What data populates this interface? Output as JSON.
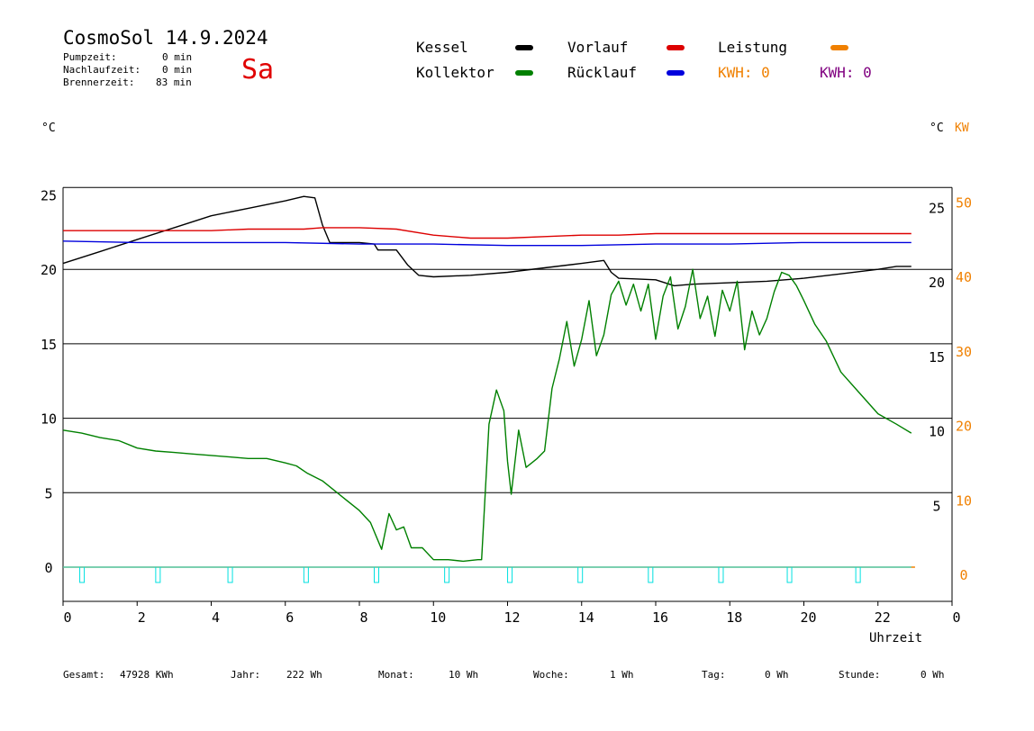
{
  "header": {
    "title": "CosmoSol 14.9.2024",
    "day": "Sa",
    "stats": [
      {
        "label": "Pumpzeit:",
        "value": "0 min"
      },
      {
        "label": "Nachlaufzeit:",
        "value": "0 min"
      },
      {
        "label": "Brennerzeit:",
        "value": "83 min"
      }
    ]
  },
  "legend": {
    "kessel": {
      "label": "Kessel",
      "color": "#000000"
    },
    "vorlauf": {
      "label": "Vorlauf",
      "color": "#dd0000"
    },
    "leistung": {
      "label": "Leistung",
      "color": "#f08000"
    },
    "kollektor": {
      "label": "Kollektor",
      "color": "#008000"
    },
    "ruecklauf": {
      "label": "Rücklauf",
      "color": "#0000dd"
    },
    "kwh1": {
      "text": "KWH: 0",
      "color": "#f08000"
    },
    "kwh2": {
      "text": "KWH: 0",
      "color": "#800080"
    }
  },
  "axes": {
    "left_unit": "°C",
    "right_unit_c": "°C",
    "right_unit_kw": "KW",
    "x_label": "Uhrzeit"
  },
  "footer": [
    {
      "label": "Gesamt:",
      "value": "47928 KWh"
    },
    {
      "label": "Jahr:",
      "value": "222 Wh"
    },
    {
      "label": "Monat:",
      "value": "10 Wh"
    },
    {
      "label": "Woche:",
      "value": "1 Wh"
    },
    {
      "label": "Tag:",
      "value": "0 Wh"
    },
    {
      "label": "Stunde:",
      "value": "0 Wh"
    }
  ],
  "chart_data": {
    "type": "line",
    "xlabel": "Uhrzeit",
    "xlim": [
      0,
      24
    ],
    "ylim": [
      -2,
      25.5
    ],
    "x_ticks": [
      "0",
      "2",
      "4",
      "6",
      "8",
      "10",
      "12",
      "14",
      "16",
      "18",
      "20",
      "22",
      "0"
    ],
    "y_left_ticks": [
      0,
      5,
      10,
      15,
      20,
      25
    ],
    "y_right_c_ticks": [
      5,
      10,
      15,
      20,
      25
    ],
    "y_right_kw_ticks": [
      0,
      10,
      20,
      30,
      40,
      50
    ],
    "grid": true,
    "series": [
      {
        "name": "Kessel",
        "color": "#000000",
        "x": [
          0,
          1,
          2,
          3,
          4,
          5,
          6,
          6.5,
          6.8,
          7.0,
          7.2,
          7.5,
          8.0,
          8.4,
          8.5,
          9.0,
          9.3,
          9.6,
          10.0,
          11.0,
          12.0,
          13.0,
          14.0,
          14.6,
          14.8,
          15.0,
          16.0,
          16.5,
          17.0,
          18.0,
          19.0,
          20.0,
          21.0,
          22.0,
          22.5,
          22.9
        ],
        "y": [
          20.4,
          21.2,
          22.0,
          22.8,
          23.6,
          24.1,
          24.6,
          24.9,
          24.8,
          23.0,
          21.8,
          21.8,
          21.8,
          21.7,
          21.3,
          21.3,
          20.3,
          19.6,
          19.5,
          19.6,
          19.8,
          20.1,
          20.4,
          20.6,
          19.8,
          19.4,
          19.3,
          18.9,
          19.0,
          19.1,
          19.2,
          19.4,
          19.7,
          20.0,
          20.2,
          20.2
        ]
      },
      {
        "name": "Vorlauf",
        "color": "#dd0000",
        "x": [
          0,
          2,
          4,
          5,
          6,
          6.5,
          7,
          8,
          9,
          10,
          11,
          12,
          13,
          14,
          15,
          16,
          18,
          20,
          22,
          22.9
        ],
        "y": [
          22.6,
          22.6,
          22.6,
          22.7,
          22.7,
          22.7,
          22.8,
          22.8,
          22.7,
          22.3,
          22.1,
          22.1,
          22.2,
          22.3,
          22.3,
          22.4,
          22.4,
          22.4,
          22.4,
          22.4
        ]
      },
      {
        "name": "Rücklauf",
        "color": "#0000dd",
        "x": [
          0,
          2,
          4,
          6,
          8,
          10,
          12,
          14,
          16,
          18,
          20,
          22,
          22.9
        ],
        "y": [
          21.9,
          21.8,
          21.8,
          21.8,
          21.7,
          21.7,
          21.6,
          21.6,
          21.7,
          21.7,
          21.8,
          21.8,
          21.8
        ]
      },
      {
        "name": "Kollektor",
        "color": "#008000",
        "x": [
          0,
          0.5,
          1,
          1.5,
          2,
          2.5,
          3,
          3.5,
          4,
          4.5,
          5,
          5.5,
          6,
          6.3,
          6.6,
          7,
          7.5,
          8,
          8.3,
          8.6,
          8.8,
          9,
          9.2,
          9.4,
          9.7,
          10,
          10.4,
          10.8,
          11.2,
          11.3,
          11.5,
          11.7,
          11.9,
          12.0,
          12.1,
          12.3,
          12.5,
          12.8,
          13.0,
          13.2,
          13.4,
          13.6,
          13.8,
          14.0,
          14.2,
          14.4,
          14.6,
          14.8,
          15.0,
          15.2,
          15.4,
          15.6,
          15.8,
          16.0,
          16.2,
          16.4,
          16.6,
          16.8,
          17.0,
          17.2,
          17.4,
          17.6,
          17.8,
          18.0,
          18.2,
          18.4,
          18.6,
          18.8,
          19.0,
          19.2,
          19.4,
          19.6,
          19.8,
          20.0,
          20.3,
          20.6,
          21.0,
          21.5,
          22.0,
          22.5,
          22.9
        ],
        "y": [
          9.2,
          9.0,
          8.7,
          8.5,
          8.0,
          7.8,
          7.7,
          7.6,
          7.5,
          7.4,
          7.3,
          7.3,
          7.0,
          6.8,
          6.3,
          5.8,
          4.8,
          3.8,
          3.0,
          1.2,
          3.6,
          2.5,
          2.7,
          1.3,
          1.3,
          0.5,
          0.5,
          0.4,
          0.5,
          0.5,
          9.6,
          11.9,
          10.5,
          7.1,
          4.9,
          9.2,
          6.7,
          7.3,
          7.8,
          12.0,
          14.0,
          16.5,
          13.5,
          15.3,
          17.9,
          14.2,
          15.6,
          18.3,
          19.2,
          17.6,
          19.0,
          17.2,
          19.0,
          15.3,
          18.2,
          19.5,
          16.0,
          17.5,
          20.0,
          16.7,
          18.2,
          15.5,
          18.6,
          17.2,
          19.2,
          14.6,
          17.2,
          15.6,
          16.7,
          18.5,
          19.8,
          19.6,
          18.9,
          17.9,
          16.3,
          15.2,
          13.1,
          11.7,
          10.3,
          9.6,
          9.0
        ]
      },
      {
        "name": "Leistung",
        "color": "#f08000",
        "x": [
          0,
          23
        ],
        "y": [
          0,
          0
        ]
      }
    ],
    "pump_markers_x": [
      0.5,
      2.55,
      4.5,
      6.55,
      8.45,
      10.35,
      12.05,
      13.95,
      15.85,
      17.75,
      19.6,
      21.45
    ]
  }
}
